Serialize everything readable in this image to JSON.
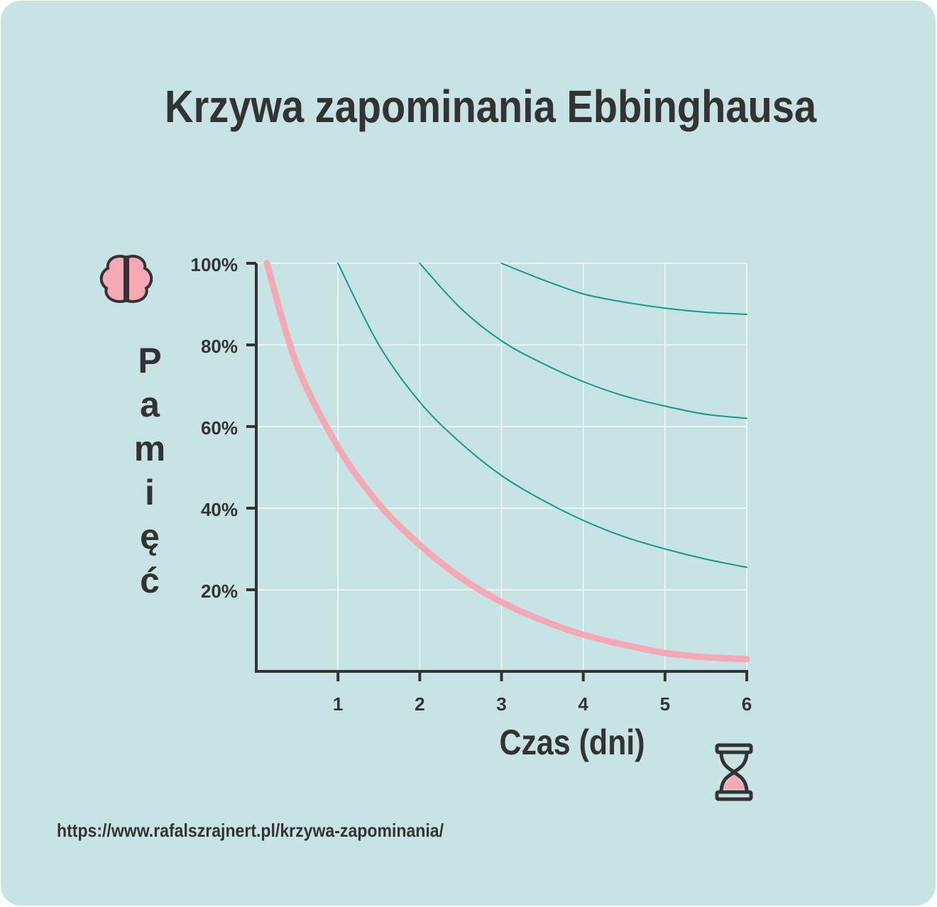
{
  "chart_data": {
    "type": "line",
    "title": "Krzywa zapominania Ebbinghausa",
    "xlabel": "Czas (dni)",
    "ylabel": "Pamięć",
    "source": "https://www.rafalszrajnert.pl/krzywa-zapominania/",
    "x": [
      0.13,
      0.5,
      1,
      1.5,
      2,
      2.5,
      3,
      3.5,
      4,
      4.5,
      5,
      5.5,
      6
    ],
    "series": [
      {
        "color": "#f4a9b4",
        "values": [
          100,
          75,
          55,
          41,
          31,
          23,
          17,
          12.5,
          9,
          6.5,
          4.5,
          3.5,
          3
        ]
      },
      {
        "color": "#129a8c",
        "values": [
          null,
          null,
          100,
          80,
          66,
          56,
          48,
          42,
          37,
          33,
          30,
          27.5,
          25.5
        ]
      },
      {
        "color": "#129a8c",
        "values": [
          null,
          null,
          null,
          null,
          100,
          89,
          81,
          75.5,
          71,
          67.5,
          65,
          63,
          62
        ]
      },
      {
        "color": "#129a8c",
        "values": [
          null,
          null,
          null,
          null,
          null,
          null,
          100,
          96,
          92.5,
          90.5,
          89,
          88,
          87.5
        ]
      }
    ],
    "xlim": [
      0,
      6
    ],
    "ylim": [
      0,
      100
    ],
    "xticks": [
      1,
      2,
      3,
      4,
      5,
      6
    ],
    "yticks": [
      {
        "value": 20,
        "label": "20%"
      },
      {
        "value": 40,
        "label": "40%"
      },
      {
        "value": 60,
        "label": "60%"
      },
      {
        "value": 80,
        "label": "80%"
      },
      {
        "value": 100,
        "label": "100%"
      }
    ],
    "grid": true
  }
}
